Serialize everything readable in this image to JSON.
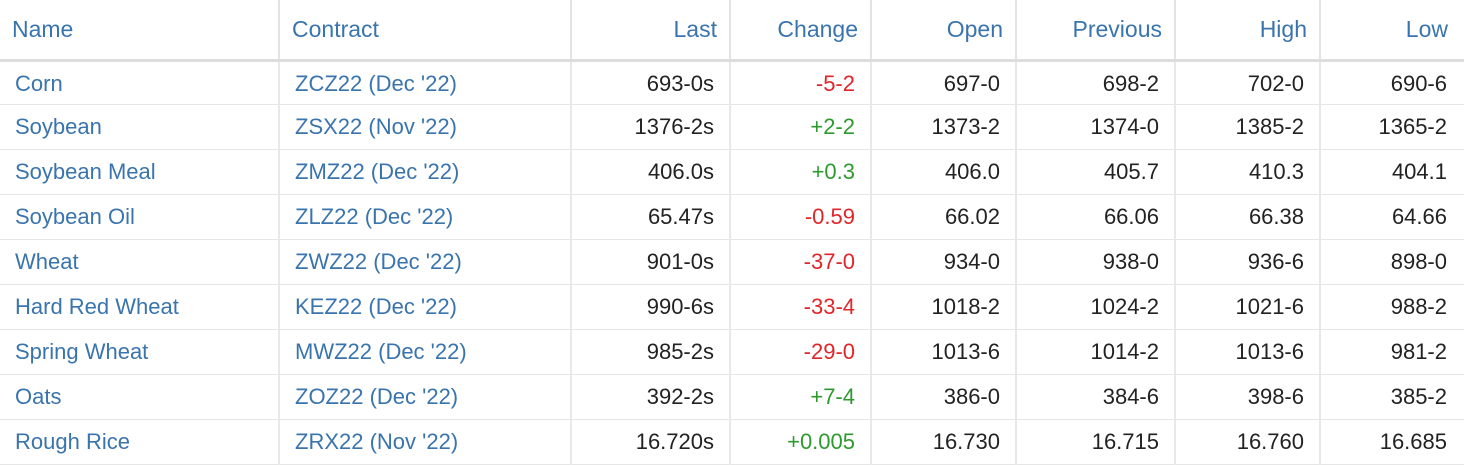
{
  "colors": {
    "link": "#3a74ad",
    "up": "#2e9a2e",
    "down": "#e0262a",
    "text": "#222222"
  },
  "headers": {
    "name": "Name",
    "contract": "Contract",
    "last": "Last",
    "change": "Change",
    "open": "Open",
    "previous": "Previous",
    "high": "High",
    "low": "Low"
  },
  "rows": [
    {
      "name": "Corn",
      "contract": "ZCZ22 (Dec '22)",
      "last": "693-0s",
      "change": "-5-2",
      "direction": "down",
      "open": "697-0",
      "previous": "698-2",
      "high": "702-0",
      "low": "690-6"
    },
    {
      "name": "Soybean",
      "contract": "ZSX22 (Nov '22)",
      "last": "1376-2s",
      "change": "+2-2",
      "direction": "up",
      "open": "1373-2",
      "previous": "1374-0",
      "high": "1385-2",
      "low": "1365-2"
    },
    {
      "name": "Soybean Meal",
      "contract": "ZMZ22 (Dec '22)",
      "last": "406.0s",
      "change": "+0.3",
      "direction": "up",
      "open": "406.0",
      "previous": "405.7",
      "high": "410.3",
      "low": "404.1"
    },
    {
      "name": "Soybean Oil",
      "contract": "ZLZ22 (Dec '22)",
      "last": "65.47s",
      "change": "-0.59",
      "direction": "down",
      "open": "66.02",
      "previous": "66.06",
      "high": "66.38",
      "low": "64.66"
    },
    {
      "name": "Wheat",
      "contract": "ZWZ22 (Dec '22)",
      "last": "901-0s",
      "change": "-37-0",
      "direction": "down",
      "open": "934-0",
      "previous": "938-0",
      "high": "936-6",
      "low": "898-0"
    },
    {
      "name": "Hard Red Wheat",
      "contract": "KEZ22 (Dec '22)",
      "last": "990-6s",
      "change": "-33-4",
      "direction": "down",
      "open": "1018-2",
      "previous": "1024-2",
      "high": "1021-6",
      "low": "988-2"
    },
    {
      "name": "Spring Wheat",
      "contract": "MWZ22 (Dec '22)",
      "last": "985-2s",
      "change": "-29-0",
      "direction": "down",
      "open": "1013-6",
      "previous": "1014-2",
      "high": "1013-6",
      "low": "981-2"
    },
    {
      "name": "Oats",
      "contract": "ZOZ22 (Dec '22)",
      "last": "392-2s",
      "change": "+7-4",
      "direction": "up",
      "open": "386-0",
      "previous": "384-6",
      "high": "398-6",
      "low": "385-2"
    },
    {
      "name": "Rough Rice",
      "contract": "ZRX22 (Nov '22)",
      "last": "16.720s",
      "change": "+0.005",
      "direction": "up",
      "open": "16.730",
      "previous": "16.715",
      "high": "16.760",
      "low": "16.685"
    }
  ]
}
